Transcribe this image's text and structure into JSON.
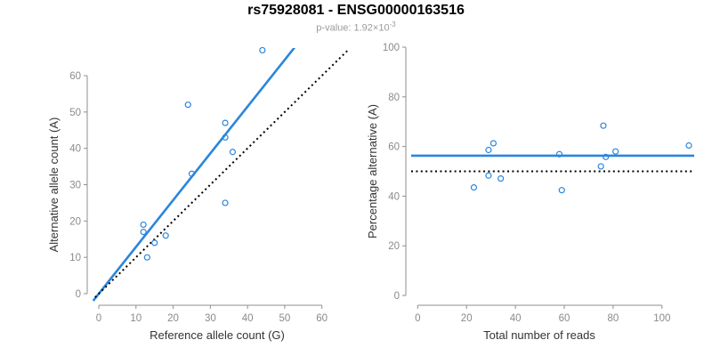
{
  "figure": {
    "title": "rs75928081 - ENSG00000163516",
    "pvalue_text": "p-value: 1.92×10",
    "pvalue_exponent": "-3"
  },
  "colors": {
    "accent_blue": "#2b86dc",
    "identity_black": "#000000",
    "axis_gray": "#8f8f8f",
    "tick_label_gray": "#8a8a8a",
    "axis_title_dark": "#333333"
  },
  "chart_data": [
    {
      "type": "scatter",
      "name": "allele-counts-scatter",
      "xlabel": "Reference allele count (G)",
      "ylabel": "Alternative allele count (A)",
      "x_ticks": [
        0,
        10,
        20,
        30,
        40,
        50,
        60
      ],
      "y_ticks": [
        0,
        10,
        20,
        30,
        40,
        50,
        60
      ],
      "xlim": [
        -2.6,
        67
      ],
      "ylim": [
        -3.2,
        67.5
      ],
      "grid": false,
      "points": [
        [
          12,
          19
        ],
        [
          12,
          17
        ],
        [
          13,
          10
        ],
        [
          15,
          14
        ],
        [
          18,
          16
        ],
        [
          24,
          52
        ],
        [
          25,
          33
        ],
        [
          34,
          25
        ],
        [
          34,
          43
        ],
        [
          34,
          47
        ],
        [
          36,
          39
        ],
        [
          44,
          67
        ]
      ],
      "lines": [
        {
          "name": "fitted-allelic-ratio-line",
          "style": "solid",
          "color_key": "accent_blue",
          "x1": -1.5,
          "y1": -1.93,
          "x2": 54,
          "y2": 69.5
        },
        {
          "name": "identity-line",
          "style": "dotted",
          "color_key": "identity_black",
          "x1": -1,
          "y1": -1,
          "x2": 69,
          "y2": 69
        }
      ]
    },
    {
      "type": "scatter",
      "name": "percentage-vs-coverage-scatter",
      "xlabel": "Total number of reads",
      "ylabel": "Percentage alternative (A)",
      "x_ticks": [
        0,
        20,
        40,
        60,
        80,
        100
      ],
      "y_ticks": [
        0,
        20,
        40,
        60,
        80,
        100
      ],
      "xlim": [
        -4.8,
        115
      ],
      "ylim": [
        0,
        104
      ],
      "grid": false,
      "points": [
        [
          23,
          43.5
        ],
        [
          29,
          48.3
        ],
        [
          29,
          58.6
        ],
        [
          31,
          61.3
        ],
        [
          34,
          47.1
        ],
        [
          58,
          56.9
        ],
        [
          59,
          42.4
        ],
        [
          75,
          52.0
        ],
        [
          76,
          68.4
        ],
        [
          77,
          55.8
        ],
        [
          81,
          58.0
        ],
        [
          111,
          60.4
        ]
      ],
      "lines": [
        {
          "name": "fitted-percentage-line",
          "style": "solid",
          "color_key": "accent_blue",
          "y": 56.3
        },
        {
          "name": "fifty-percent-line",
          "style": "dotted",
          "color_key": "identity_black",
          "y": 50
        }
      ]
    }
  ]
}
